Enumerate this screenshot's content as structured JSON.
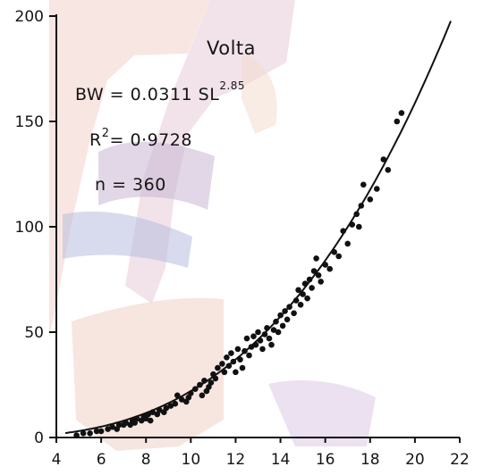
{
  "chart_data": {
    "type": "scatter",
    "title": "Volta",
    "equation": {
      "lhs": "BW = 0.0311 SL",
      "exponent": "2.85"
    },
    "r_squared": {
      "label": "R",
      "power": "2",
      "value": "= 0·9728"
    },
    "n_label": "n = 360",
    "xlabel": "",
    "ylabel": "",
    "xlim": [
      4,
      22
    ],
    "ylim": [
      0,
      200
    ],
    "x_ticks": [
      4,
      6,
      8,
      10,
      12,
      14,
      16,
      18,
      20,
      22
    ],
    "y_ticks": [
      0,
      50,
      100,
      150,
      200
    ],
    "grid": false,
    "fit_curve": {
      "a": 0.0311,
      "b": 2.85
    },
    "series": [
      {
        "points": [
          {
            "x": 4.9,
            "y": 1
          },
          {
            "x": 5.2,
            "y": 2
          },
          {
            "x": 5.5,
            "y": 2
          },
          {
            "x": 5.8,
            "y": 3
          },
          {
            "x": 6.0,
            "y": 3
          },
          {
            "x": 6.3,
            "y": 4
          },
          {
            "x": 6.5,
            "y": 5
          },
          {
            "x": 6.7,
            "y": 4
          },
          {
            "x": 6.8,
            "y": 6
          },
          {
            "x": 7.0,
            "y": 6
          },
          {
            "x": 7.1,
            "y": 7
          },
          {
            "x": 7.3,
            "y": 6
          },
          {
            "x": 7.4,
            "y": 8
          },
          {
            "x": 7.5,
            "y": 7
          },
          {
            "x": 7.6,
            "y": 9
          },
          {
            "x": 7.8,
            "y": 8
          },
          {
            "x": 7.9,
            "y": 10
          },
          {
            "x": 8.0,
            "y": 9
          },
          {
            "x": 8.1,
            "y": 11
          },
          {
            "x": 8.2,
            "y": 8
          },
          {
            "x": 8.3,
            "y": 12
          },
          {
            "x": 8.5,
            "y": 11
          },
          {
            "x": 8.6,
            "y": 13
          },
          {
            "x": 8.8,
            "y": 12
          },
          {
            "x": 8.9,
            "y": 14
          },
          {
            "x": 9.1,
            "y": 15
          },
          {
            "x": 9.3,
            "y": 16
          },
          {
            "x": 9.4,
            "y": 20
          },
          {
            "x": 9.6,
            "y": 18
          },
          {
            "x": 9.8,
            "y": 17
          },
          {
            "x": 9.9,
            "y": 19
          },
          {
            "x": 10.0,
            "y": 21
          },
          {
            "x": 10.2,
            "y": 23
          },
          {
            "x": 10.4,
            "y": 25
          },
          {
            "x": 10.5,
            "y": 20
          },
          {
            "x": 10.6,
            "y": 27
          },
          {
            "x": 10.7,
            "y": 22
          },
          {
            "x": 10.8,
            "y": 24
          },
          {
            "x": 10.9,
            "y": 26
          },
          {
            "x": 11.0,
            "y": 30
          },
          {
            "x": 11.1,
            "y": 28
          },
          {
            "x": 11.2,
            "y": 33
          },
          {
            "x": 11.4,
            "y": 35
          },
          {
            "x": 11.5,
            "y": 31
          },
          {
            "x": 11.6,
            "y": 38
          },
          {
            "x": 11.7,
            "y": 34
          },
          {
            "x": 11.8,
            "y": 40
          },
          {
            "x": 11.9,
            "y": 36
          },
          {
            "x": 12.0,
            "y": 31
          },
          {
            "x": 12.1,
            "y": 42
          },
          {
            "x": 12.2,
            "y": 37
          },
          {
            "x": 12.3,
            "y": 33
          },
          {
            "x": 12.4,
            "y": 41
          },
          {
            "x": 12.5,
            "y": 47
          },
          {
            "x": 12.6,
            "y": 39
          },
          {
            "x": 12.7,
            "y": 43
          },
          {
            "x": 12.8,
            "y": 48
          },
          {
            "x": 12.9,
            "y": 44
          },
          {
            "x": 13.0,
            "y": 50
          },
          {
            "x": 13.1,
            "y": 46
          },
          {
            "x": 13.2,
            "y": 42
          },
          {
            "x": 13.3,
            "y": 49
          },
          {
            "x": 13.4,
            "y": 52
          },
          {
            "x": 13.5,
            "y": 47
          },
          {
            "x": 13.6,
            "y": 44
          },
          {
            "x": 13.7,
            "y": 51
          },
          {
            "x": 13.8,
            "y": 55
          },
          {
            "x": 13.9,
            "y": 50
          },
          {
            "x": 14.0,
            "y": 58
          },
          {
            "x": 14.1,
            "y": 53
          },
          {
            "x": 14.2,
            "y": 60
          },
          {
            "x": 14.3,
            "y": 56
          },
          {
            "x": 14.4,
            "y": 62
          },
          {
            "x": 14.6,
            "y": 59
          },
          {
            "x": 14.7,
            "y": 65
          },
          {
            "x": 14.8,
            "y": 70
          },
          {
            "x": 14.9,
            "y": 63
          },
          {
            "x": 15.0,
            "y": 68
          },
          {
            "x": 15.1,
            "y": 73
          },
          {
            "x": 15.2,
            "y": 66
          },
          {
            "x": 15.3,
            "y": 75
          },
          {
            "x": 15.4,
            "y": 71
          },
          {
            "x": 15.5,
            "y": 79
          },
          {
            "x": 15.6,
            "y": 85
          },
          {
            "x": 15.7,
            "y": 77
          },
          {
            "x": 15.8,
            "y": 74
          },
          {
            "x": 16.0,
            "y": 82
          },
          {
            "x": 16.2,
            "y": 80
          },
          {
            "x": 16.4,
            "y": 88
          },
          {
            "x": 16.6,
            "y": 86
          },
          {
            "x": 16.8,
            "y": 98
          },
          {
            "x": 17.0,
            "y": 92
          },
          {
            "x": 17.2,
            "y": 101
          },
          {
            "x": 17.4,
            "y": 106
          },
          {
            "x": 17.5,
            "y": 100
          },
          {
            "x": 17.6,
            "y": 110
          },
          {
            "x": 17.7,
            "y": 120
          },
          {
            "x": 18.0,
            "y": 113
          },
          {
            "x": 18.3,
            "y": 118
          },
          {
            "x": 18.6,
            "y": 132
          },
          {
            "x": 18.8,
            "y": 127
          },
          {
            "x": 19.2,
            "y": 150
          },
          {
            "x": 19.4,
            "y": 154
          }
        ]
      }
    ]
  }
}
